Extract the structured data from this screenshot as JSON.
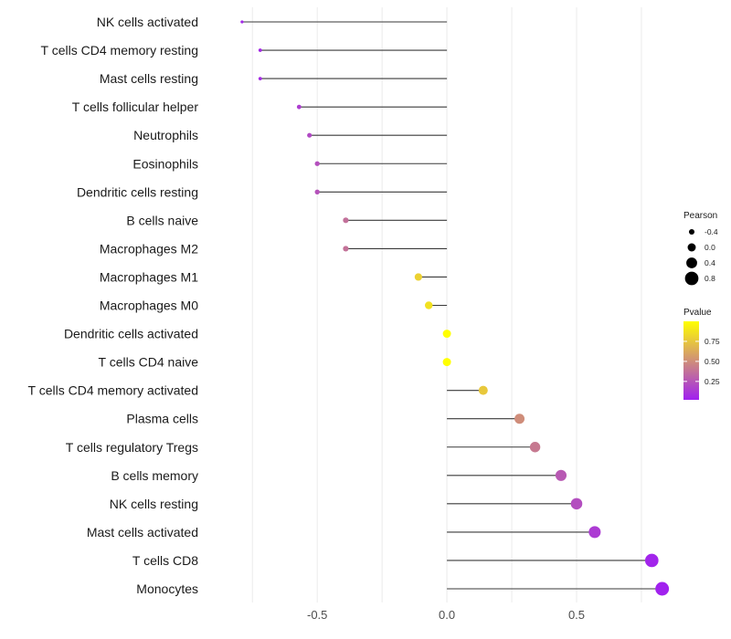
{
  "chart_data": {
    "type": "lollipop",
    "xlim": [
      -0.92,
      0.87
    ],
    "x_ticks": [
      {
        "value": -0.5,
        "label": "-0.5"
      },
      {
        "value": 0,
        "label": "0.0"
      },
      {
        "value": 0.5,
        "label": "0.5"
      }
    ],
    "points": [
      {
        "label": "NK cells activated",
        "r": -0.79,
        "p": 0.05
      },
      {
        "label": "T cells CD4 memory resting",
        "r": -0.72,
        "p": 0.06
      },
      {
        "label": "Mast cells resting",
        "r": -0.72,
        "p": 0.07
      },
      {
        "label": "T cells follicular helper",
        "r": -0.57,
        "p": 0.15
      },
      {
        "label": "Neutrophils",
        "r": -0.53,
        "p": 0.2
      },
      {
        "label": "Eosinophils",
        "r": -0.5,
        "p": 0.23
      },
      {
        "label": "Dendritic cells resting",
        "r": -0.5,
        "p": 0.24
      },
      {
        "label": "B cells naive",
        "r": -0.39,
        "p": 0.37
      },
      {
        "label": "Macrophages M2",
        "r": -0.39,
        "p": 0.38
      },
      {
        "label": "Macrophages M1",
        "r": -0.11,
        "p": 0.8
      },
      {
        "label": "Macrophages M0",
        "r": -0.07,
        "p": 0.87
      },
      {
        "label": "Dendritic cells activated",
        "r": 0.0,
        "p": 1.0
      },
      {
        "label": "T cells CD4 naive",
        "r": 0.0,
        "p": 1.0
      },
      {
        "label": "T cells CD4 memory activated",
        "r": 0.14,
        "p": 0.76
      },
      {
        "label": "Plasma cells",
        "r": 0.28,
        "p": 0.5
      },
      {
        "label": "T cells regulatory  Tregs",
        "r": 0.34,
        "p": 0.41
      },
      {
        "label": "B cells memory",
        "r": 0.44,
        "p": 0.27
      },
      {
        "label": "NK cells resting",
        "r": 0.5,
        "p": 0.22
      },
      {
        "label": "Mast cells activated",
        "r": 0.57,
        "p": 0.14
      },
      {
        "label": "T cells CD8",
        "r": 0.79,
        "p": 0.04
      },
      {
        "label": "Monocytes",
        "r": 0.83,
        "p": 0.03
      }
    ],
    "legend_size": {
      "title": "Pearson",
      "items": [
        {
          "value": -0.4,
          "label": "-0.4"
        },
        {
          "value": 0.0,
          "label": "0.0"
        },
        {
          "value": 0.4,
          "label": "0.4"
        },
        {
          "value": 0.8,
          "label": "0.8"
        }
      ]
    },
    "legend_color": {
      "title": "Pvalue",
      "low_color": "#a020f0",
      "high_color": "#ffff00",
      "range": [
        0.02,
        1.0
      ],
      "ticks": [
        {
          "value": 0.25,
          "label": "0.25"
        },
        {
          "value": 0.5,
          "label": "0.50"
        },
        {
          "value": 0.75,
          "label": "0.75"
        }
      ]
    }
  }
}
